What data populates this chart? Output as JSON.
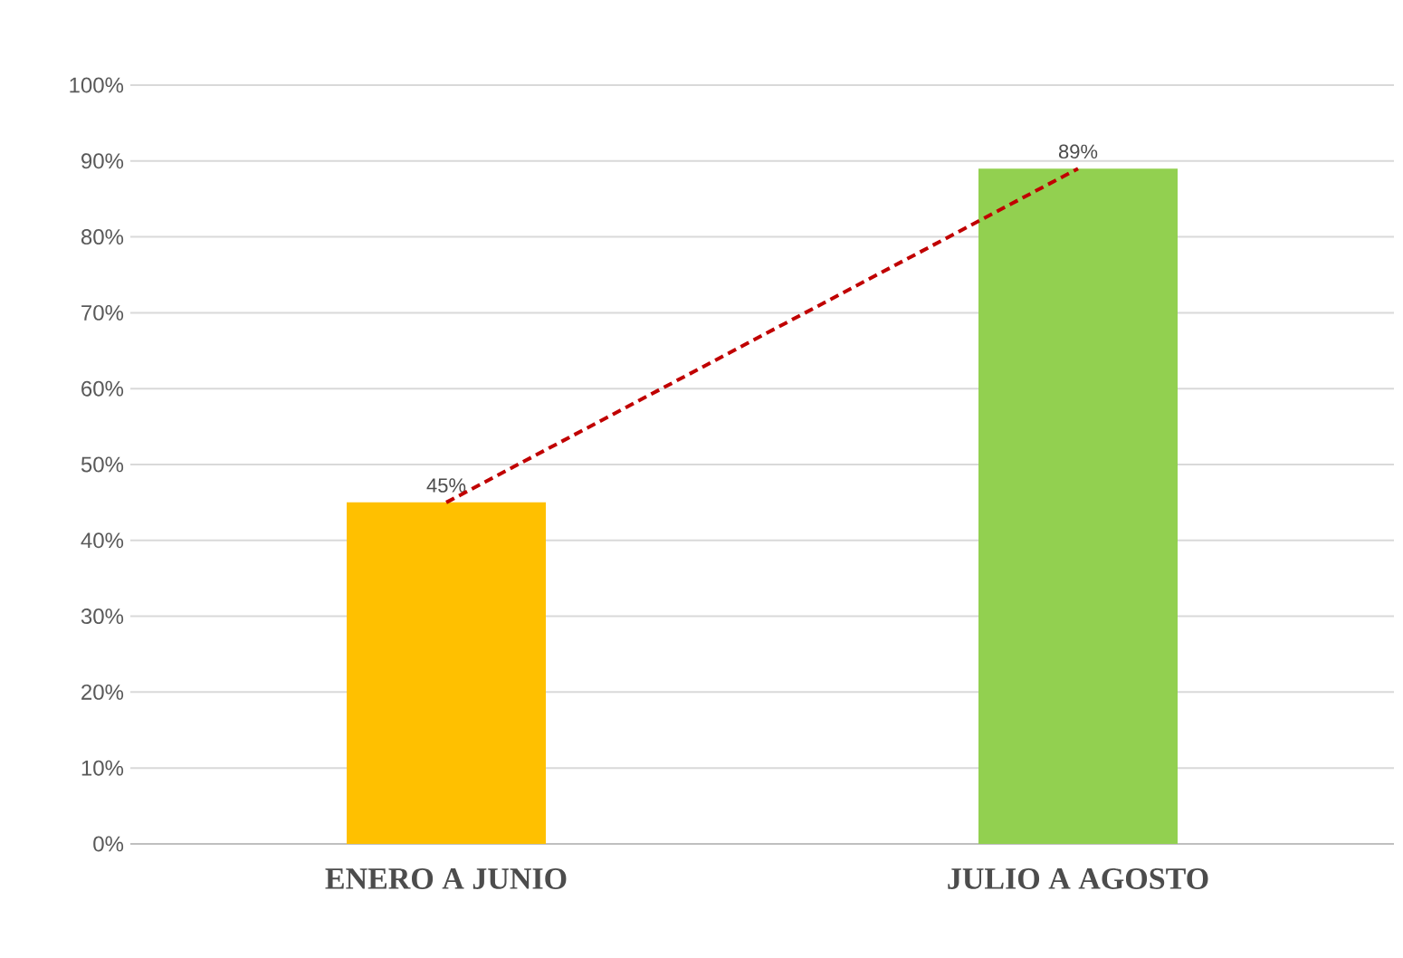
{
  "chart_data": {
    "type": "bar",
    "categories": [
      "ENERO A JUNIO",
      "JULIO A AGOSTO"
    ],
    "series": [
      {
        "colors": [
          "#ffc000",
          "#92d050"
        ],
        "values": [
          45,
          89
        ],
        "value_labels": [
          "45%",
          "89%"
        ]
      },
      {
        "type": "line",
        "color": "#c00000",
        "values": [
          45,
          89
        ],
        "line_style": "dashed",
        "marker": "none"
      }
    ],
    "ylim": [
      0,
      100
    ],
    "yticks": [
      {
        "value": 0,
        "label": "0%"
      },
      {
        "value": 10,
        "label": "10%"
      },
      {
        "value": 20,
        "label": "20%"
      },
      {
        "value": 30,
        "label": "30%"
      },
      {
        "value": 40,
        "label": "40%"
      },
      {
        "value": 50,
        "label": "50%"
      },
      {
        "value": 60,
        "label": "60%"
      },
      {
        "value": 70,
        "label": "70%"
      },
      {
        "value": 80,
        "label": "80%"
      },
      {
        "value": 90,
        "label": "90%"
      },
      {
        "value": 100,
        "label": "100%"
      }
    ],
    "grid": "y"
  }
}
